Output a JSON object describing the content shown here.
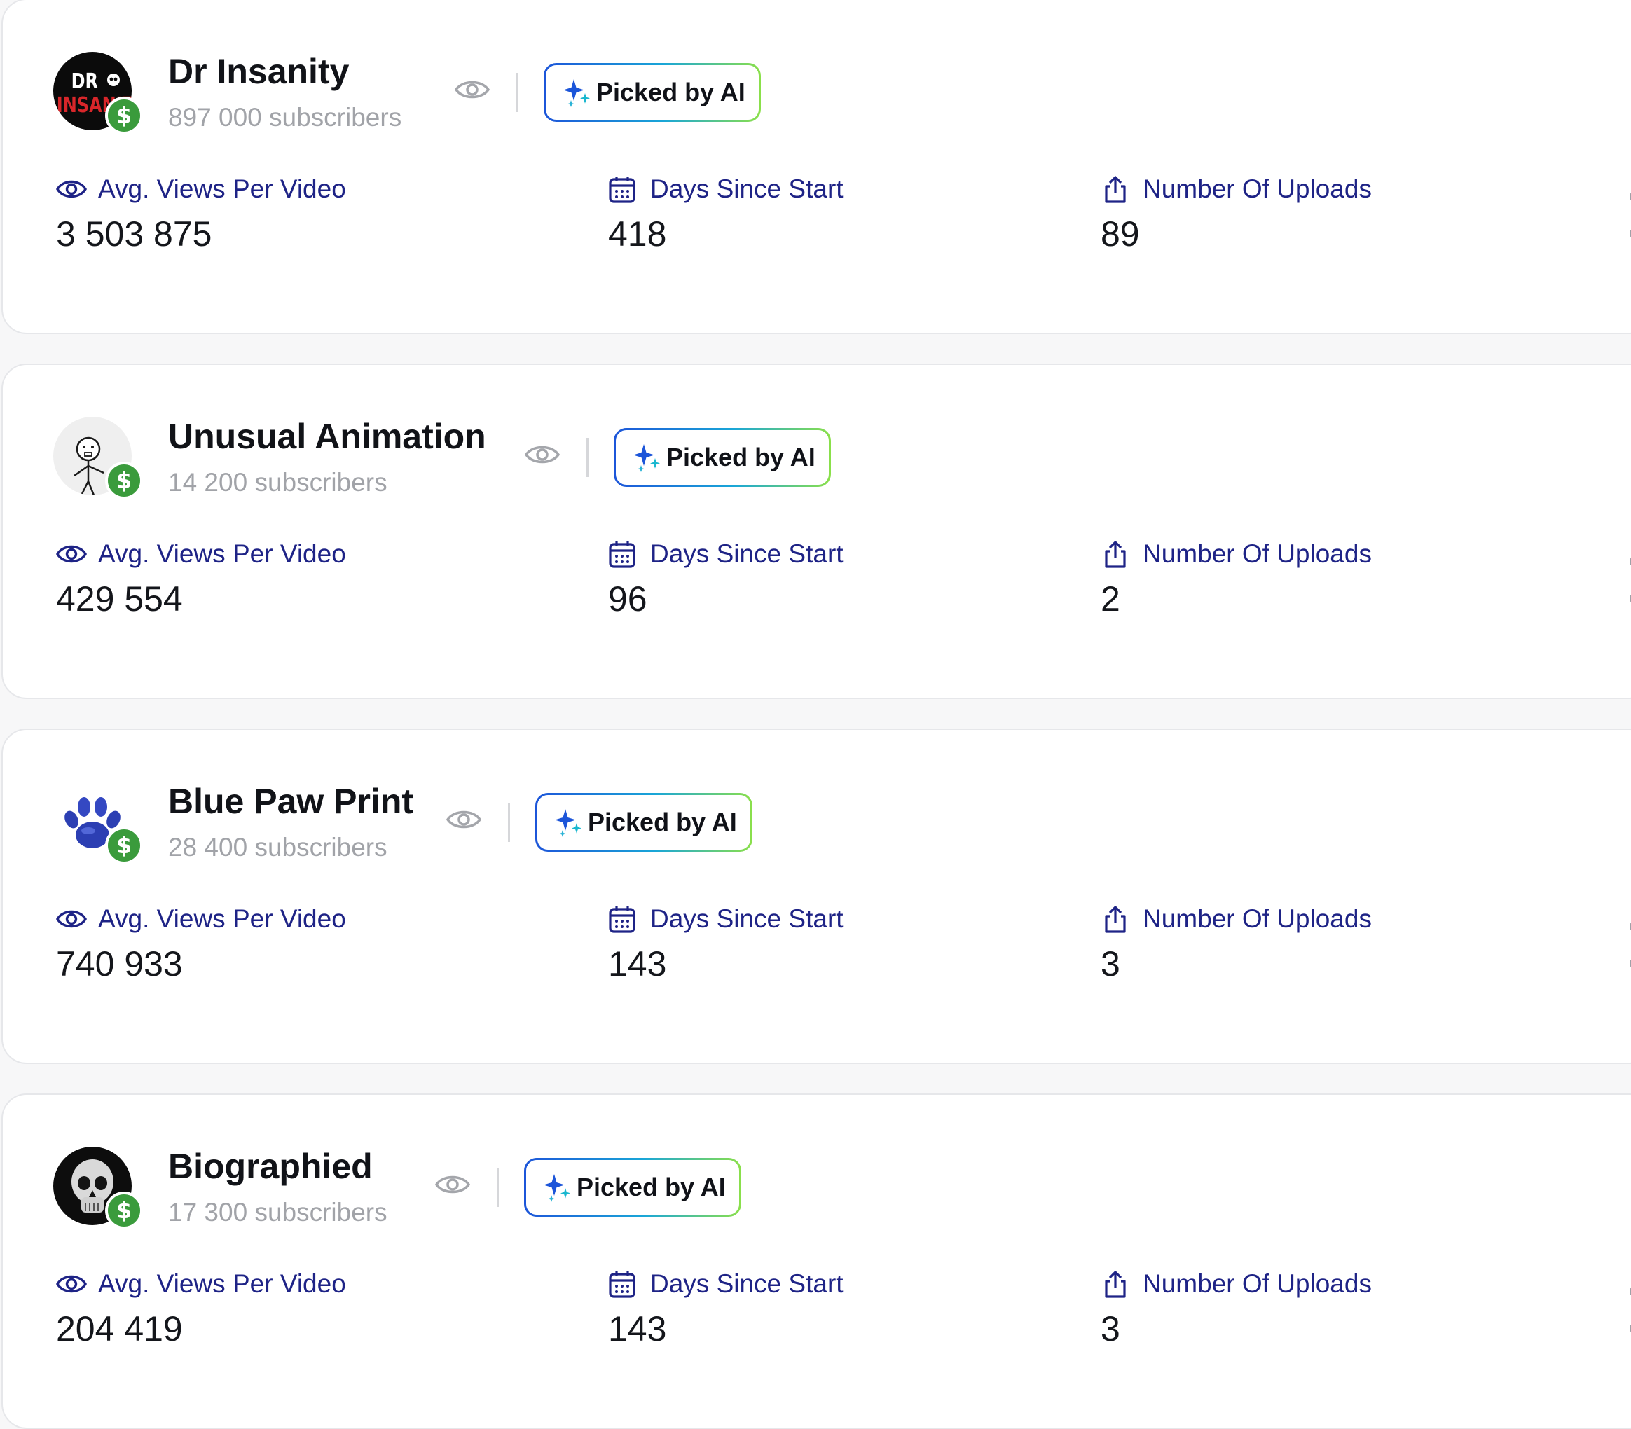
{
  "colors": {
    "accent_navy": "#1e2386",
    "subscribers_gray": "#a1a3a8",
    "dollar_green": "#3a9b3c",
    "badge_gradient": [
      "#1c55d9",
      "#19a6d8",
      "#8be04a"
    ]
  },
  "channels": [
    {
      "name": "Dr Insanity",
      "subscribers": "897 000 subscribers",
      "avatar_icon": "dr-insanity-logo",
      "badge": "Picked by AI",
      "metrics": [
        {
          "icon": "eye-icon",
          "label": "Avg. Views Per Video",
          "value": "3 503 875"
        },
        {
          "icon": "calendar-icon",
          "label": "Days Since Start",
          "value": "418"
        },
        {
          "icon": "upload-icon",
          "label": "Number Of Uploads",
          "value": "89"
        }
      ]
    },
    {
      "name": "Unusual Animation",
      "subscribers": "14 200 subscribers",
      "avatar_icon": "stick-figure-avatar",
      "badge": "Picked by AI",
      "metrics": [
        {
          "icon": "eye-icon",
          "label": "Avg. Views Per Video",
          "value": "429 554"
        },
        {
          "icon": "calendar-icon",
          "label": "Days Since Start",
          "value": "96"
        },
        {
          "icon": "upload-icon",
          "label": "Number Of Uploads",
          "value": "2"
        }
      ]
    },
    {
      "name": "Blue Paw Print",
      "subscribers": "28 400 subscribers",
      "avatar_icon": "blue-paw-avatar",
      "badge": "Picked by AI",
      "metrics": [
        {
          "icon": "eye-icon",
          "label": "Avg. Views Per Video",
          "value": "740 933"
        },
        {
          "icon": "calendar-icon",
          "label": "Days Since Start",
          "value": "143"
        },
        {
          "icon": "upload-icon",
          "label": "Number Of Uploads",
          "value": "3"
        }
      ]
    },
    {
      "name": "Biographied",
      "subscribers": "17 300 subscribers",
      "avatar_icon": "skull-avatar",
      "badge": "Picked by AI",
      "metrics": [
        {
          "icon": "eye-icon",
          "label": "Avg. Views Per Video",
          "value": "204 419"
        },
        {
          "icon": "calendar-icon",
          "label": "Days Since Start",
          "value": "143"
        },
        {
          "icon": "upload-icon",
          "label": "Number Of Uploads",
          "value": "3"
        }
      ]
    }
  ]
}
